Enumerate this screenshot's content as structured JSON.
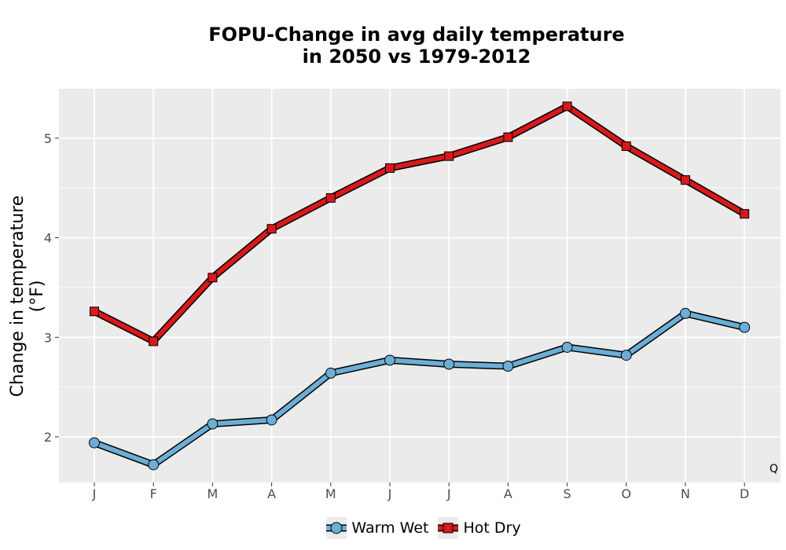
{
  "chart_data": {
    "type": "line",
    "title_line1": "FOPU-Change in avg daily temperature",
    "title_line2": "in 2050 vs 1979-2012",
    "xlabel": "",
    "ylabel": "Change in temperature (°F)",
    "categories": [
      "J",
      "F",
      "M",
      "A",
      "M",
      "J",
      "J",
      "A",
      "S",
      "O",
      "N",
      "D"
    ],
    "yticks": [
      2,
      3,
      4,
      5
    ],
    "ylim": [
      1.5,
      5.5
    ],
    "grid": true,
    "legend_position": "bottom",
    "corner_note": "Q",
    "series": [
      {
        "name": "Warm Wet",
        "color": "#6baed6",
        "marker": "circle",
        "values": [
          1.94,
          1.72,
          2.13,
          2.17,
          2.64,
          2.77,
          2.73,
          2.71,
          2.9,
          2.82,
          3.24,
          3.1
        ]
      },
      {
        "name": "Hot Dry",
        "color": "#d7191c",
        "marker": "square",
        "values": [
          3.26,
          2.96,
          3.6,
          4.09,
          4.4,
          4.7,
          4.82,
          5.01,
          5.32,
          4.92,
          4.58,
          4.24
        ]
      }
    ]
  }
}
